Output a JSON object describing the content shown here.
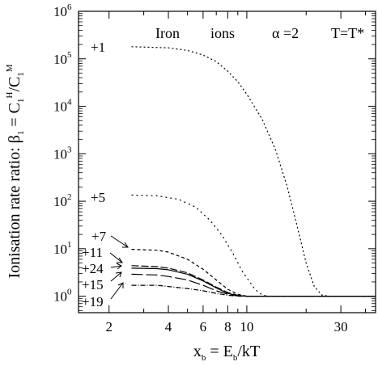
{
  "chart_data": {
    "type": "line",
    "title": "Iron ions",
    "annotations": {
      "left": "Iron",
      "middle": "ions",
      "alpha": "α =2",
      "temperature": "T=T*"
    },
    "xlabel": "x_b = E_b/kT",
    "ylabel": "Ionisation rate ratio: β_1 = C_1^H/C_1^M",
    "x_scale": "log",
    "y_scale": "log",
    "xlim": [
      1.4,
      45
    ],
    "ylim": [
      0.45,
      1000000
    ],
    "x_ticks": [
      {
        "value": 2,
        "label": "2"
      },
      {
        "value": 4,
        "label": "4"
      },
      {
        "value": 6,
        "label": "6"
      },
      {
        "value": 8,
        "label": "8"
      },
      {
        "value": 10,
        "label": "10"
      },
      {
        "value": 30,
        "label": "30"
      }
    ],
    "y_ticks": [
      {
        "value": 1,
        "base": "10",
        "exp": "0"
      },
      {
        "value": 10,
        "base": "10",
        "exp": "1"
      },
      {
        "value": 100,
        "base": "10",
        "exp": "2"
      },
      {
        "value": 1000,
        "base": "10",
        "exp": "3"
      },
      {
        "value": 10000,
        "base": "10",
        "exp": "4"
      },
      {
        "value": 100000,
        "base": "10",
        "exp": "5"
      },
      {
        "value": 1000000,
        "base": "10",
        "exp": "6"
      }
    ],
    "grid": false,
    "legend": "inline labels at left",
    "series": [
      {
        "name": "+1",
        "dash": "2 3",
        "points": [
          [
            2.6,
            180000
          ],
          [
            4,
            170000
          ],
          [
            5,
            150000
          ],
          [
            6,
            120000
          ],
          [
            7,
            87000
          ],
          [
            8,
            55000
          ],
          [
            9,
            33000
          ],
          [
            10,
            18000
          ],
          [
            12,
            5200
          ],
          [
            14,
            1200
          ],
          [
            16,
            210
          ],
          [
            18,
            30
          ],
          [
            20,
            5
          ],
          [
            22,
            1.6
          ],
          [
            24,
            1.06
          ],
          [
            26,
            1.0
          ],
          [
            30,
            1.0
          ],
          [
            45,
            1.0
          ]
        ]
      },
      {
        "name": "+5",
        "dash": "2 4",
        "points": [
          [
            2.6,
            135
          ],
          [
            3.5,
            130
          ],
          [
            4.5,
            110
          ],
          [
            5.5,
            75
          ],
          [
            6.5,
            40
          ],
          [
            7.5,
            19
          ],
          [
            8.5,
            8
          ],
          [
            9.5,
            3.3
          ],
          [
            11,
            1.4
          ],
          [
            12,
            1.05
          ],
          [
            13,
            1.0
          ],
          [
            45,
            1.0
          ]
        ]
      },
      {
        "name": "+7",
        "dash": "4 3",
        "points": [
          [
            2.6,
            9.7
          ],
          [
            3.5,
            9.3
          ],
          [
            4,
            8.5
          ],
          [
            5,
            6.0
          ],
          [
            6,
            3.7
          ],
          [
            7,
            2.2
          ],
          [
            8,
            1.4
          ],
          [
            9,
            1.1
          ],
          [
            10,
            1.0
          ],
          [
            45,
            1.0
          ]
        ]
      },
      {
        "name": "+11",
        "dash": "9 3",
        "points": [
          [
            2.6,
            4.4
          ],
          [
            3.5,
            4.2
          ],
          [
            4,
            3.9
          ],
          [
            5,
            3.1
          ],
          [
            6,
            2.2
          ],
          [
            7,
            1.55
          ],
          [
            8,
            1.2
          ],
          [
            9,
            1.05
          ],
          [
            10,
            1.0
          ],
          [
            45,
            1.0
          ]
        ]
      },
      {
        "name": "+24",
        "dash": "",
        "points": [
          [
            2.6,
            3.9
          ],
          [
            3.5,
            3.8
          ],
          [
            4,
            3.6
          ],
          [
            5,
            2.9
          ],
          [
            6,
            2.1
          ],
          [
            7,
            1.5
          ],
          [
            8,
            1.15
          ],
          [
            9,
            1.03
          ],
          [
            10,
            1.0
          ],
          [
            45,
            1.0
          ]
        ]
      },
      {
        "name": "+15",
        "dash": "14 4",
        "points": [
          [
            2.6,
            2.9
          ],
          [
            3.5,
            2.8
          ],
          [
            4,
            2.6
          ],
          [
            5,
            2.2
          ],
          [
            6,
            1.7
          ],
          [
            7,
            1.3
          ],
          [
            8,
            1.1
          ],
          [
            9,
            1.02
          ],
          [
            10,
            1.0
          ],
          [
            45,
            1.0
          ]
        ]
      },
      {
        "name": "+19",
        "dash": "6 2 1 2",
        "points": [
          [
            2.6,
            1.7
          ],
          [
            3.5,
            1.7
          ],
          [
            4,
            1.6
          ],
          [
            5,
            1.45
          ],
          [
            6,
            1.3
          ],
          [
            7,
            1.15
          ],
          [
            8,
            1.05
          ],
          [
            9,
            1.0
          ],
          [
            45,
            1.0
          ]
        ]
      }
    ]
  }
}
